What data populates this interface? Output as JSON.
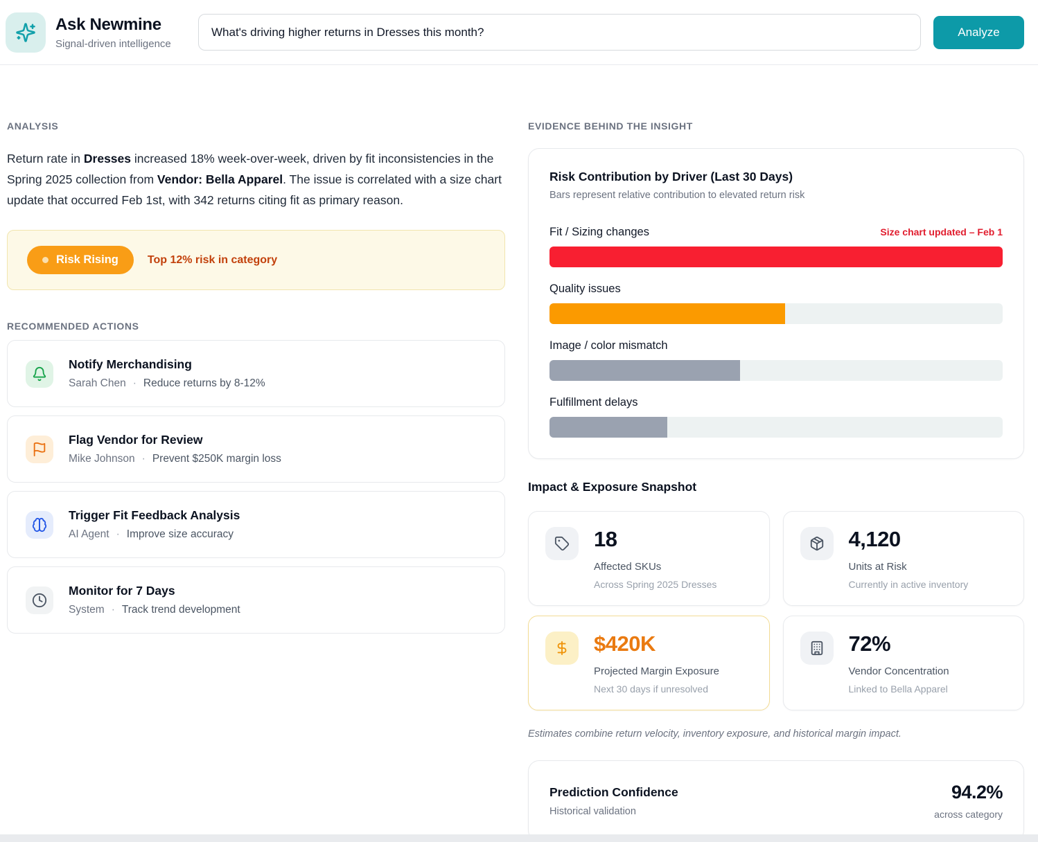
{
  "header": {
    "app_name": "Ask Newmine",
    "tagline": "Signal-driven intelligence",
    "query": "What's driving higher returns in Dresses this month?",
    "analyze_label": "Analyze"
  },
  "analysis": {
    "section_title": "ANALYSIS",
    "p1": "Return rate in ",
    "p2": "Dresses",
    "p3": " increased 18% week-over-week, driven by fit inconsistencies in the Spring 2025 collection from ",
    "p4": "Vendor: Bella Apparel",
    "p5": ". The issue is correlated with a size chart update that occurred Feb 1st, with 342 returns citing fit as primary reason."
  },
  "risk_banner": {
    "badge": "Risk Rising",
    "note": "Top 12% risk in category"
  },
  "actions": {
    "section_title": "RECOMMENDED ACTIONS",
    "items": [
      {
        "title": "Notify Merchandising",
        "owner": "Sarah Chen",
        "sep": "·",
        "benefit": "Reduce returns by 8-12%",
        "icon": "bell-icon"
      },
      {
        "title": "Flag Vendor for Review",
        "owner": "Mike Johnson",
        "sep": "·",
        "benefit": "Prevent $250K margin loss",
        "icon": "flag-icon"
      },
      {
        "title": "Trigger Fit Feedback Analysis",
        "owner": "AI Agent",
        "sep": "·",
        "benefit": "Improve size accuracy",
        "icon": "brain-icon"
      },
      {
        "title": "Monitor for 7 Days",
        "owner": "System",
        "sep": "·",
        "benefit": "Track trend development",
        "icon": "clock-icon"
      }
    ]
  },
  "evidence": {
    "section_title": "EVIDENCE BEHIND THE INSIGHT"
  },
  "chart_data": {
    "type": "bar",
    "title": "Risk Contribution by Driver (Last 30 Days)",
    "subtitle": "Bars represent relative contribution to elevated return risk",
    "orientation": "horizontal",
    "categories": [
      "Fit / Sizing changes",
      "Quality issues",
      "Image / color mismatch",
      "Fulfillment delays"
    ],
    "values": [
      100,
      52,
      42,
      26
    ],
    "value_unit": "relative contribution, % of max",
    "colors": [
      "#f81f31",
      "#fb9a00",
      "#9aa2b0",
      "#9aa2b0"
    ],
    "annotations": [
      {
        "category": "Fit / Sizing changes",
        "text": "Size chart updated – Feb 1",
        "color": "#e11d2e"
      }
    ],
    "track_color": "#edf2f2",
    "grid": false,
    "legend": false
  },
  "snapshot": {
    "section_title": "Impact & Exposure Snapshot",
    "cards": [
      {
        "value": "18",
        "label": "Affected SKUs",
        "sublabel": "Across Spring 2025 Dresses",
        "icon": "tag-icon",
        "highlight": false
      },
      {
        "value": "4,120",
        "label": "Units at Risk",
        "sublabel": "Currently in active inventory",
        "icon": "package-icon",
        "highlight": false
      },
      {
        "value": "$420K",
        "label": "Projected Margin Exposure",
        "sublabel": "Next 30 days if unresolved",
        "icon": "dollar-icon",
        "highlight": true
      },
      {
        "value": "72%",
        "label": "Vendor Concentration",
        "sublabel": "Linked to Bella Apparel",
        "icon": "building-icon",
        "highlight": false
      }
    ],
    "footnote": "Estimates combine return velocity, inventory exposure, and historical margin impact."
  },
  "confidence": {
    "title": "Prediction Confidence",
    "subtitle": "Historical validation",
    "value": "94.2%",
    "context": "across category"
  },
  "colors": {
    "accent_teal": "#0d9aa8",
    "risk_orange": "#f99d16",
    "risk_note": "#c2410c",
    "bar_red": "#f81f31",
    "bar_orange": "#fb9a00",
    "bar_gray": "#9aa2b0",
    "highlight_value_orange": "#ea7a10"
  }
}
